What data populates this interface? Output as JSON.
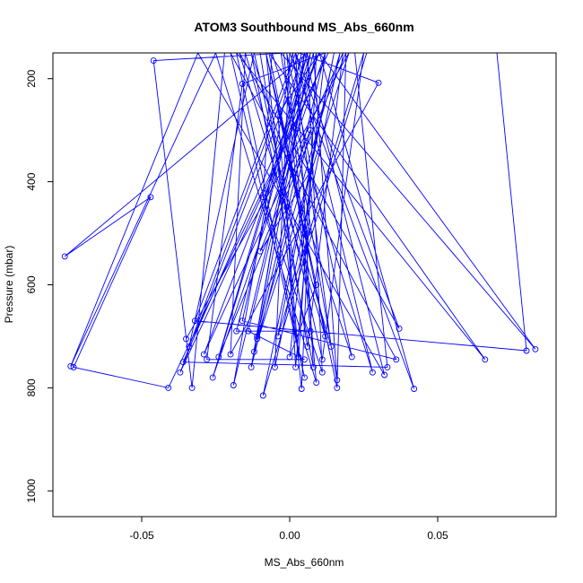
{
  "chart_data": {
    "type": "line",
    "title": "ATOM3 Southbound MS_Abs_660nm",
    "xlabel": "MS_Abs_660nm",
    "ylabel": "Pressure (mbar)",
    "xlim": [
      -0.08,
      0.09
    ],
    "ylim": [
      1050,
      150
    ],
    "y_reversed": true,
    "grid": false,
    "legend": "none",
    "line_color": "#0000ff",
    "x_ticks": [
      -0.05,
      0.0,
      0.05
    ],
    "x_tick_labels": [
      "-0.05",
      "0.00",
      "0.05"
    ],
    "y_ticks": [
      200,
      400,
      600,
      800,
      1000
    ],
    "y_tick_labels": [
      "200",
      "400",
      "600",
      "800",
      "1000"
    ],
    "series": [
      {
        "values": [
          [
            -0.035,
            705
          ],
          [
            0.02,
            150
          ],
          [
            -0.012,
            730
          ],
          [
            0.005,
            150
          ],
          [
            0.032,
            775
          ],
          [
            -0.031,
            150
          ],
          [
            -0.074,
            758
          ],
          [
            -0.025,
            150
          ],
          [
            0.009,
            790
          ],
          [
            -0.001,
            150
          ],
          [
            -0.046,
            165
          ],
          [
            -0.033,
            800
          ],
          [
            -0.022,
            150
          ],
          [
            0.026,
            150
          ],
          [
            -0.009,
            815
          ],
          [
            0.015,
            150
          ],
          [
            -0.004,
            700
          ],
          [
            0.025,
            150
          ],
          [
            0.011,
            745
          ],
          [
            -0.012,
            150
          ],
          [
            -0.034,
            720
          ],
          [
            0.003,
            150
          ],
          [
            0.03,
            208
          ],
          [
            -0.02,
            735
          ],
          [
            -0.015,
            150
          ],
          [
            0.014,
            720
          ],
          [
            0.001,
            150
          ],
          [
            -0.019,
            795
          ],
          [
            0.008,
            150
          ],
          [
            0.016,
            785
          ],
          [
            -0.003,
            150
          ],
          [
            0.083,
            725
          ],
          [
            0.01,
            150
          ],
          [
            -0.029,
            735
          ],
          [
            0.018,
            150
          ],
          [
            0.006,
            720
          ],
          [
            -0.01,
            150
          ],
          [
            -0.027,
            150
          ],
          [
            0.07,
            150
          ],
          [
            0.08,
            728
          ],
          [
            -0.032,
            670
          ],
          [
            0.002,
            150
          ],
          [
            0.037,
            685
          ],
          [
            -0.017,
            150
          ],
          [
            0.012,
            700
          ],
          [
            -0.007,
            150
          ],
          [
            0.066,
            745
          ],
          [
            -0.018,
            150
          ],
          [
            0.005,
            780
          ],
          [
            -0.02,
            150
          ],
          [
            0.036,
            745
          ],
          [
            -0.016,
            670
          ],
          [
            0.004,
            150
          ],
          [
            0.022,
            150
          ],
          [
            0.033,
            760
          ],
          [
            -0.036,
            750
          ],
          [
            0.01,
            150
          ],
          [
            0.042,
            802
          ],
          [
            0.0,
            150
          ],
          [
            -0.005,
            760
          ],
          [
            0.017,
            150
          ],
          [
            -0.011,
            705
          ],
          [
            0.007,
            150
          ],
          [
            -0.026,
            780
          ],
          [
            0.012,
            150
          ],
          [
            -0.016,
            210
          ],
          [
            -0.028,
            745
          ],
          [
            0.005,
            745
          ],
          [
            -0.014,
            690
          ],
          [
            0.009,
            150
          ],
          [
            0.004,
            802
          ],
          [
            -0.008,
            150
          ],
          [
            0.016,
            800
          ],
          [
            0.019,
            150
          ],
          [
            -0.024,
            740
          ],
          [
            0.006,
            150
          ],
          [
            -0.076,
            545
          ],
          [
            -0.047,
            430
          ],
          [
            -0.073,
            760
          ],
          [
            -0.041,
            800
          ],
          [
            0.013,
            150
          ],
          [
            -0.037,
            770
          ],
          [
            0.005,
            150
          ],
          [
            -0.001,
            150
          ],
          [
            0.021,
            740
          ],
          [
            -0.013,
            150
          ],
          [
            0.008,
            760
          ],
          [
            0.002,
            150
          ],
          [
            0.028,
            770
          ],
          [
            -0.006,
            150
          ],
          [
            -0.009,
            430
          ],
          [
            0.011,
            770
          ],
          [
            0.006,
            150
          ],
          [
            -0.018,
            690
          ],
          [
            0.007,
            690
          ],
          [
            -0.002,
            150
          ],
          [
            0.01,
            150
          ],
          [
            -0.004,
            270
          ],
          [
            0.003,
            740
          ],
          [
            0.007,
            380
          ],
          [
            -0.01,
            535
          ],
          [
            0.007,
            300
          ],
          [
            -0.013,
            760
          ],
          [
            0.005,
            150
          ],
          [
            -0.001,
            450
          ],
          [
            0.002,
            760
          ],
          [
            0.006,
            500
          ],
          [
            -0.008,
            150
          ],
          [
            0.009,
            600
          ],
          [
            0.0,
            740
          ],
          [
            0.012,
            150
          ],
          [
            -0.011,
            700
          ]
        ]
      }
    ]
  }
}
